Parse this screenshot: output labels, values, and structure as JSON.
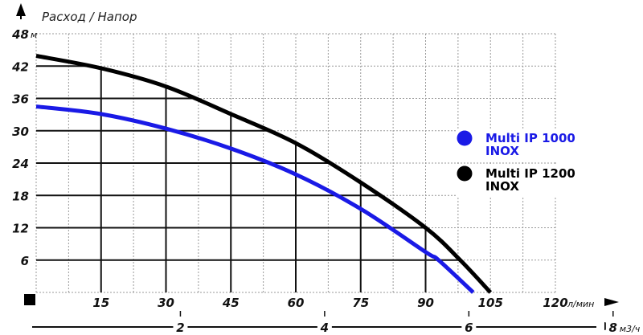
{
  "chart_data": {
    "type": "line",
    "title": "Расход / Напор",
    "ylabel_unit": "м",
    "xlabel_unit": "л/мин",
    "x2label_unit": "м3/ч",
    "xlim": [
      0,
      120
    ],
    "ylim": [
      0,
      48
    ],
    "x_ticks": [
      "15",
      "30",
      "45",
      "60",
      "75",
      "90",
      "105",
      "120"
    ],
    "y_ticks": [
      "6",
      "12",
      "18",
      "24",
      "30",
      "36",
      "42",
      "48"
    ],
    "x2_ticks": [
      {
        "value": 2,
        "label": "2"
      },
      {
        "value": 4,
        "label": "4"
      },
      {
        "value": 6,
        "label": "6"
      },
      {
        "value": 8,
        "label": "8"
      }
    ],
    "grid": true,
    "legend_position": "right",
    "series": [
      {
        "name": "Multi IP 1000 INOX",
        "name_line1": "Multi IP 1000",
        "name_line2": "INOX",
        "color": "#1a1ae6",
        "x": [
          0,
          15,
          30,
          45,
          60,
          75,
          90,
          93,
          101
        ],
        "y": [
          34.5,
          33.1,
          30.4,
          26.7,
          21.9,
          15.5,
          7.5,
          6,
          0
        ]
      },
      {
        "name": "Multi IP 1200 INOX",
        "name_line1": "Multi IP 1200",
        "name_line2": "INOX",
        "color": "#000000",
        "x": [
          0,
          15,
          30,
          45,
          60,
          75,
          90,
          98,
          105
        ],
        "y": [
          43.9,
          41.6,
          38.2,
          33.1,
          27.7,
          20.4,
          12,
          6,
          0
        ]
      }
    ]
  }
}
